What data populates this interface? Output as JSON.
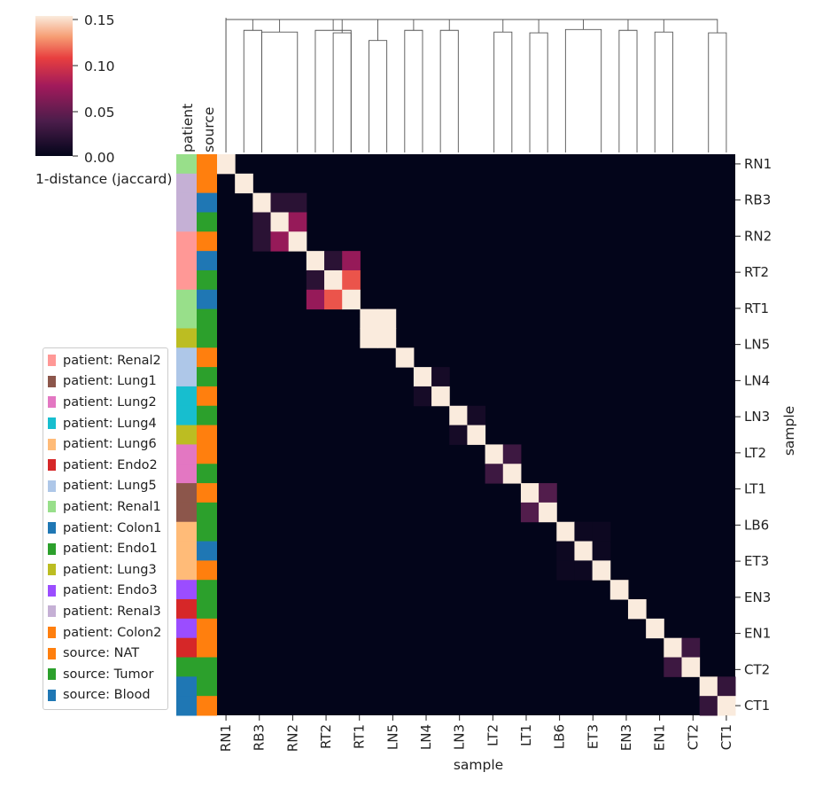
{
  "chart_data": {
    "type": "heatmap",
    "title": "",
    "xlabel": "sample",
    "ylabel": "sample",
    "colorbar": {
      "label": "1-distance (jaccard)",
      "ticks": [
        "0.00",
        "0.05",
        "0.10",
        "0.15"
      ],
      "range": [
        0,
        0.15
      ]
    },
    "row_color_headers": [
      "patient",
      "source"
    ],
    "tick_labels": [
      "RN1",
      "RB3",
      "RN2",
      "RT2",
      "RT1",
      "LN5",
      "LN4",
      "LN3",
      "LT2",
      "LT1",
      "LB6",
      "ET3",
      "EN3",
      "EN1",
      "CT2",
      "CT1"
    ],
    "n_samples": 29,
    "diagonal_value": 0.15,
    "off_diagonal_cells": [
      {
        "i": 2,
        "j": 3,
        "value": 0.02
      },
      {
        "i": 2,
        "j": 4,
        "value": 0.02
      },
      {
        "i": 3,
        "j": 4,
        "value": 0.07
      },
      {
        "i": 5,
        "j": 6,
        "value": 0.02
      },
      {
        "i": 5,
        "j": 7,
        "value": 0.07
      },
      {
        "i": 6,
        "j": 7,
        "value": 0.11
      },
      {
        "i": 8,
        "j": 9,
        "value": 0.15
      },
      {
        "i": 11,
        "j": 12,
        "value": 0.01
      },
      {
        "i": 13,
        "j": 14,
        "value": 0.01
      },
      {
        "i": 15,
        "j": 16,
        "value": 0.03
      },
      {
        "i": 17,
        "j": 18,
        "value": 0.04
      },
      {
        "i": 19,
        "j": 20,
        "value": 0.005
      },
      {
        "i": 19,
        "j": 21,
        "value": 0.005
      },
      {
        "i": 20,
        "j": 21,
        "value": 0.005
      },
      {
        "i": 25,
        "j": 26,
        "value": 0.03
      },
      {
        "i": 27,
        "j": 28,
        "value": 0.025
      }
    ],
    "patient_colors_by_row": [
      "#98df8a",
      "#c5b0d5",
      "#c5b0d5",
      "#c5b0d5",
      "#ff9896",
      "#ff9896",
      "#ff9896",
      "#98df8a",
      "#98df8a",
      "#bcbd22",
      "#aec7e8",
      "#aec7e8",
      "#17becf",
      "#17becf",
      "#bcbd22",
      "#e377c2",
      "#e377c2",
      "#8c564b",
      "#8c564b",
      "#ffbb78",
      "#ffbb78",
      "#ffbb78",
      "#9b4dff",
      "#d62728",
      "#9b4dff",
      "#d62728",
      "#2ca02c",
      "#1f77b4",
      "#1f77b4"
    ],
    "source_colors_by_row": [
      "#ff7f0e",
      "#ff7f0e",
      "#1f77b4",
      "#2ca02c",
      "#ff7f0e",
      "#1f77b4",
      "#2ca02c",
      "#1f77b4",
      "#2ca02c",
      "#2ca02c",
      "#ff7f0e",
      "#2ca02c",
      "#ff7f0e",
      "#2ca02c",
      "#ff7f0e",
      "#ff7f0e",
      "#2ca02c",
      "#ff7f0e",
      "#2ca02c",
      "#2ca02c",
      "#1f77b4",
      "#ff7f0e",
      "#2ca02c",
      "#2ca02c",
      "#ff7f0e",
      "#ff7f0e",
      "#2ca02c",
      "#2ca02c",
      "#ff7f0e"
    ],
    "legend": [
      {
        "label": "patient: Renal2",
        "color": "#ff9896"
      },
      {
        "label": "patient: Lung1",
        "color": "#8c564b"
      },
      {
        "label": "patient: Lung2",
        "color": "#e377c2"
      },
      {
        "label": "patient: Lung4",
        "color": "#17becf"
      },
      {
        "label": "patient: Lung6",
        "color": "#ffbb78"
      },
      {
        "label": "patient: Endo2",
        "color": "#d62728"
      },
      {
        "label": "patient: Lung5",
        "color": "#aec7e8"
      },
      {
        "label": "patient: Renal1",
        "color": "#98df8a"
      },
      {
        "label": "patient: Colon1",
        "color": "#1f77b4"
      },
      {
        "label": "patient: Endo1",
        "color": "#2ca02c"
      },
      {
        "label": "patient: Lung3",
        "color": "#bcbd22"
      },
      {
        "label": "patient: Endo3",
        "color": "#9b4dff"
      },
      {
        "label": "patient: Renal3",
        "color": "#c5b0d5"
      },
      {
        "label": "patient: Colon2",
        "color": "#ff7f0e"
      },
      {
        "label": "source: NAT",
        "color": "#ff7f0e"
      },
      {
        "label": "source: Tumor",
        "color": "#2ca02c"
      },
      {
        "label": "source: Blood",
        "color": "#1f77b4"
      }
    ],
    "dendrogram": {
      "cluster_heights": [
        0.16,
        0.145,
        0.143,
        0.145,
        0.142,
        0.133,
        0.145,
        0.145,
        0.143,
        0.142,
        0.146,
        0.145,
        0.143,
        0.142
      ]
    }
  }
}
